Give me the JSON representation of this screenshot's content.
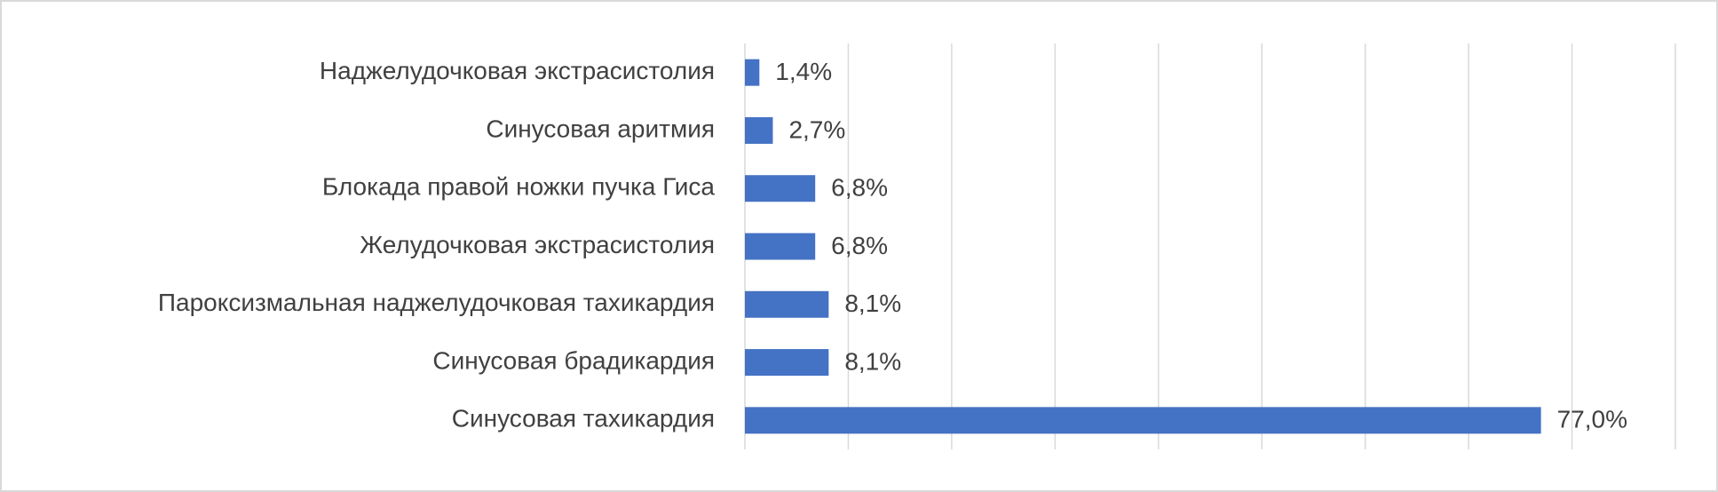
{
  "chart_data": {
    "type": "hbar",
    "categories": [
      "Наджелудочковая экстрасистолия",
      "Синусовая аритмия",
      "Блокада правой ножки пучка Гиса",
      "Желудочковая экстрасистолия",
      "Пароксизмальная наджелудочковая тахикардия",
      "Синусовая брадикардия",
      "Синусовая тахикардия"
    ],
    "values": [
      1.4,
      2.7,
      6.8,
      6.8,
      8.1,
      8.1,
      77.0
    ],
    "value_labels": [
      "1,4%",
      "2,7%",
      "6,8%",
      "6,8%",
      "8,1%",
      "8,1%",
      "77,0%"
    ],
    "color": "#4472c4",
    "xlim": [
      0,
      90
    ],
    "xticks": [
      0,
      10,
      20,
      30,
      40,
      50,
      60,
      70,
      80,
      90
    ],
    "grid": true
  }
}
